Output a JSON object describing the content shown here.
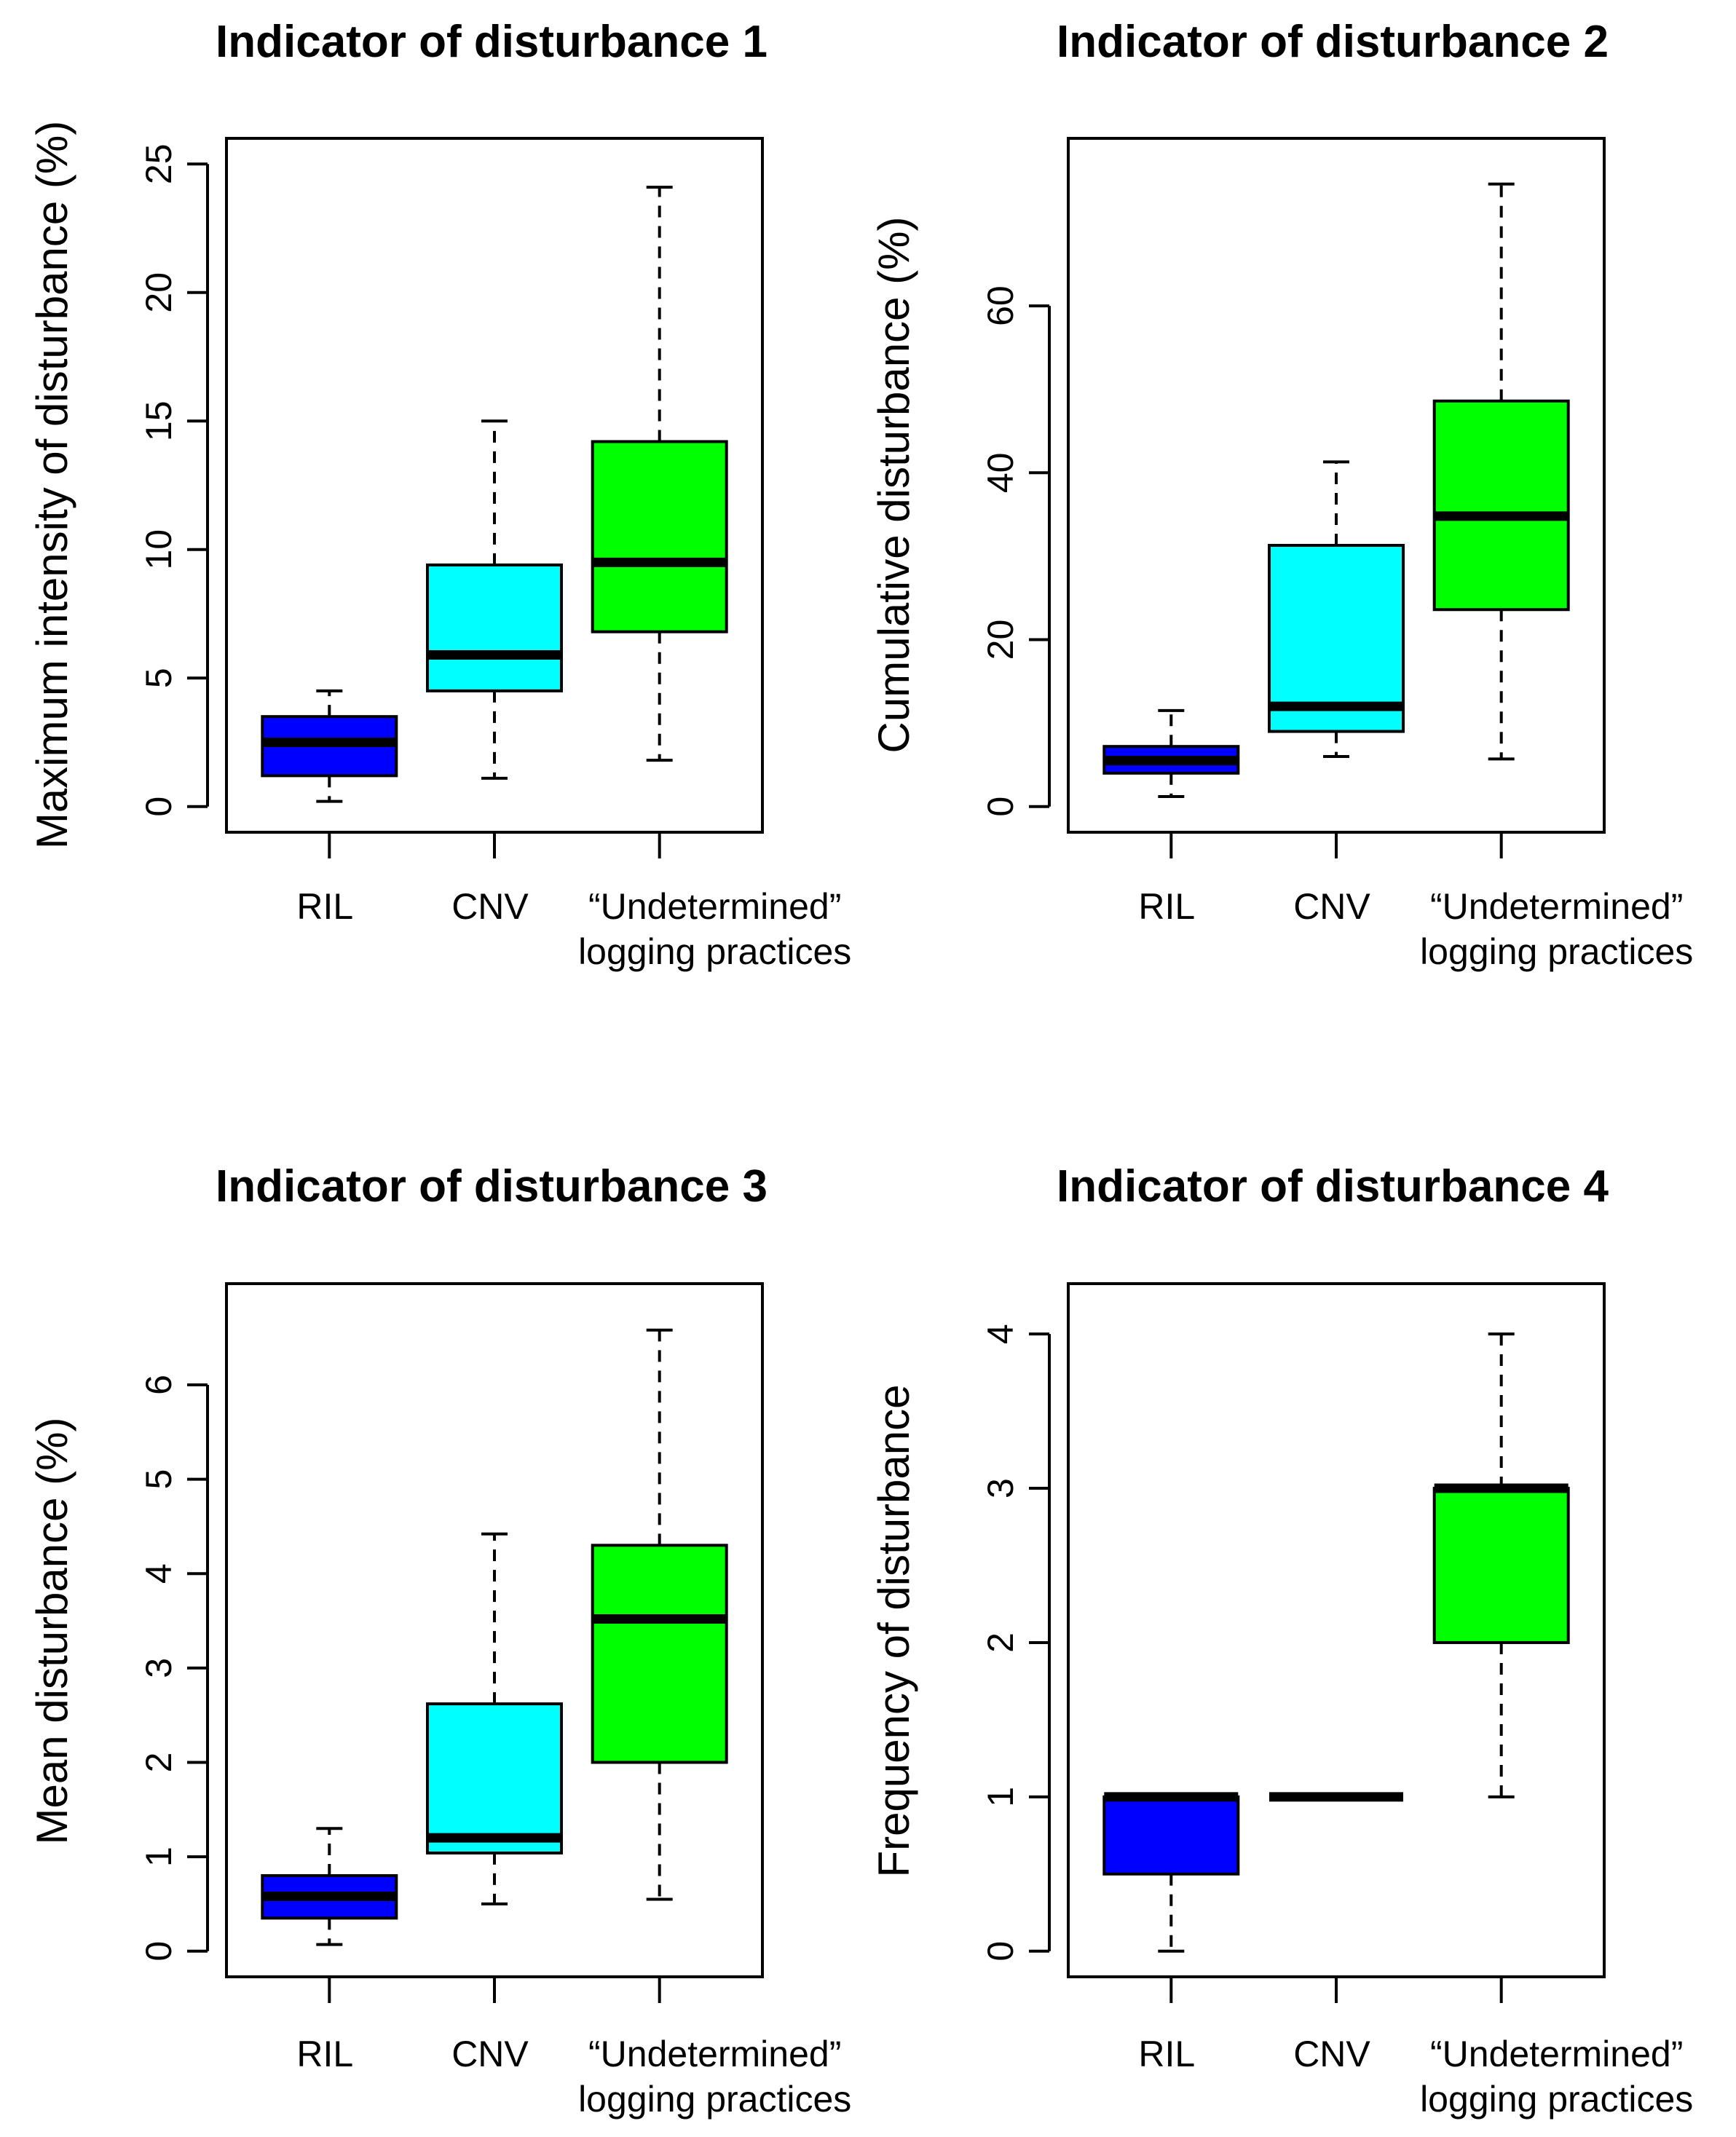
{
  "chart_data": [
    {
      "type": "box",
      "title": "Indicator of disturbance 1",
      "ylabel": "Maximum intensity of disturbance (%)",
      "xlabel": "",
      "ylim": [
        0,
        25
      ],
      "yticks": [
        "0",
        "5",
        "10",
        "15",
        "20",
        "25"
      ],
      "categories": [
        "RIL",
        "CNV",
        "“Undetermined” logging practices"
      ],
      "category_lines": [
        [
          "RIL"
        ],
        [
          "CNV"
        ],
        [
          "“Undetermined”",
          "logging practices"
        ]
      ],
      "boxes": [
        {
          "name": "RIL",
          "color": "#0000ff",
          "whisker_low": 0.2,
          "q1": 1.2,
          "median": 2.5,
          "q3": 3.5,
          "whisker_high": 4.5
        },
        {
          "name": "CNV",
          "color": "#00ffff",
          "whisker_low": 1.1,
          "q1": 4.5,
          "median": 5.9,
          "q3": 9.4,
          "whisker_high": 15.0
        },
        {
          "name": "“Undetermined” logging practices",
          "color": "#00ff00",
          "whisker_low": 1.8,
          "q1": 6.8,
          "median": 9.5,
          "q3": 14.2,
          "whisker_high": 24.1
        }
      ]
    },
    {
      "type": "box",
      "title": "Indicator of disturbance 2",
      "ylabel": "Cumulative disturbance (%)",
      "xlabel": "",
      "ylim": [
        0,
        77
      ],
      "yticks": [
        "0",
        "20",
        "40",
        "60"
      ],
      "categories": [
        "RIL",
        "CNV",
        "“Undetermined” logging practices"
      ],
      "category_lines": [
        [
          "RIL"
        ],
        [
          "CNV"
        ],
        [
          "“Undetermined”",
          "logging practices"
        ]
      ],
      "boxes": [
        {
          "name": "RIL",
          "color": "#0000ff",
          "whisker_low": 1.2,
          "q1": 4.0,
          "median": 5.5,
          "q3": 7.2,
          "whisker_high": 11.5
        },
        {
          "name": "CNV",
          "color": "#00ffff",
          "whisker_low": 6.0,
          "q1": 9.0,
          "median": 12.0,
          "q3": 31.3,
          "whisker_high": 41.3
        },
        {
          "name": "“Undetermined” logging practices",
          "color": "#00ff00",
          "whisker_low": 5.7,
          "q1": 23.6,
          "median": 34.8,
          "q3": 48.6,
          "whisker_high": 74.6
        }
      ]
    },
    {
      "type": "box",
      "title": "Indicator of disturbance 3",
      "ylabel": "Mean disturbance (%)",
      "xlabel": "",
      "ylim": [
        0,
        6.8
      ],
      "yticks": [
        "0",
        "1",
        "2",
        "3",
        "4",
        "5",
        "6"
      ],
      "categories": [
        "RIL",
        "CNV",
        "“Undetermined” logging practices"
      ],
      "category_lines": [
        [
          "RIL"
        ],
        [
          "CNV"
        ],
        [
          "“Undetermined”",
          "logging practices"
        ]
      ],
      "boxes": [
        {
          "name": "RIL",
          "color": "#0000ff",
          "whisker_low": 0.07,
          "q1": 0.35,
          "median": 0.58,
          "q3": 0.8,
          "whisker_high": 1.3
        },
        {
          "name": "CNV",
          "color": "#00ffff",
          "whisker_low": 0.5,
          "q1": 1.04,
          "median": 1.2,
          "q3": 2.62,
          "whisker_high": 4.42
        },
        {
          "name": "“Undetermined” logging practices",
          "color": "#00ff00",
          "whisker_low": 0.55,
          "q1": 2.0,
          "median": 3.52,
          "q3": 4.3,
          "whisker_high": 6.58
        }
      ]
    },
    {
      "type": "box",
      "title": "Indicator of disturbance 4",
      "ylabel": "Frequency of disturbance",
      "xlabel": "",
      "ylim": [
        0,
        4.16
      ],
      "yticks": [
        "0",
        "1",
        "2",
        "3",
        "4"
      ],
      "categories": [
        "RIL",
        "CNV",
        "“Undetermined” logging practices"
      ],
      "category_lines": [
        [
          "RIL"
        ],
        [
          "CNV"
        ],
        [
          "“Undetermined”",
          "logging practices"
        ]
      ],
      "boxes": [
        {
          "name": "RIL",
          "color": "#0000ff",
          "whisker_low": 0.0,
          "q1": 0.5,
          "median": 1.0,
          "q3": 1.0,
          "whisker_high": 1.0
        },
        {
          "name": "CNV",
          "color": "#00ffff",
          "whisker_low": 1.0,
          "q1": 1.0,
          "median": 1.0,
          "q3": 1.0,
          "whisker_high": 1.0
        },
        {
          "name": "“Undetermined” logging practices",
          "color": "#00ff00",
          "whisker_low": 1.0,
          "q1": 2.0,
          "median": 3.0,
          "q3": 3.0,
          "whisker_high": 4.0
        }
      ]
    }
  ]
}
